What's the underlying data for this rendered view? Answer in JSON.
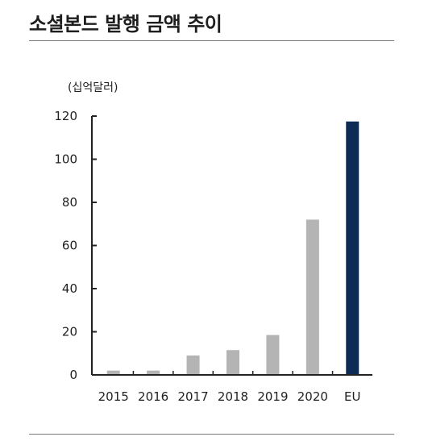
{
  "header": {
    "title": "소셜본드 발행 금액 추이"
  },
  "chart_data": {
    "type": "bar",
    "unit_label": "(십억달러)",
    "categories": [
      "2015",
      "2016",
      "2017",
      "2018",
      "2019",
      "2020",
      "EU"
    ],
    "values": [
      2,
      2,
      9,
      11.5,
      18.5,
      72,
      117.5
    ],
    "yticks": [
      0,
      20,
      40,
      60,
      80,
      100,
      120
    ],
    "ylim": [
      0,
      120
    ],
    "colors": {
      "default_bar": "#b4b4b4",
      "highlight_bar": "#0c2b55",
      "axis": "#222222"
    },
    "highlight_category": "EU",
    "grid": false,
    "legend": "none"
  }
}
